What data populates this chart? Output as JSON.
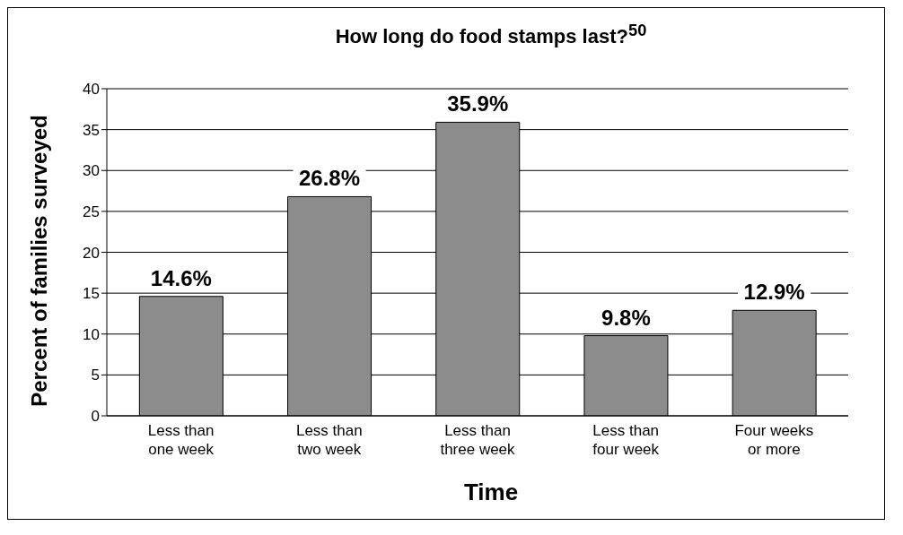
{
  "chart_data": {
    "type": "bar",
    "title": "How long do food stamps last?$^{50}$",
    "xlabel": "Time",
    "ylabel": "Percent of families surveyed",
    "categories": [
      "Less than one week",
      "Less than two week",
      "Less than three week",
      "Less than four week",
      "Four weeks or more"
    ],
    "values": [
      14.6,
      26.8,
      35.9,
      9.8,
      12.9
    ],
    "value_labels": [
      "14.6%",
      "26.8%",
      "35.9%",
      "9.8%",
      "12.9%"
    ],
    "color": "#8c8c8c",
    "ylim": [
      0,
      40
    ],
    "yticks": [
      0,
      5,
      10,
      15,
      20,
      25,
      30,
      35,
      40
    ],
    "grid": "y"
  }
}
